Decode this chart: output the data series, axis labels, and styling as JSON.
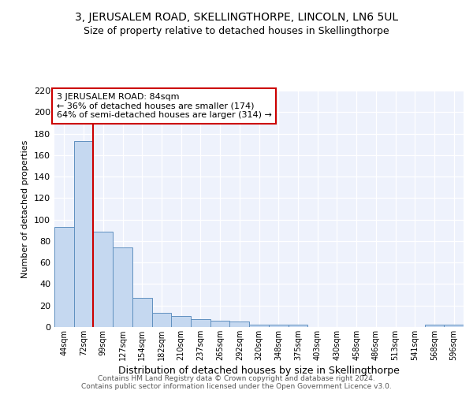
{
  "title": "3, JERUSALEM ROAD, SKELLINGTHORPE, LINCOLN, LN6 5UL",
  "subtitle": "Size of property relative to detached houses in Skellingthorpe",
  "xlabel": "Distribution of detached houses by size in Skellingthorpe",
  "ylabel": "Number of detached properties",
  "categories": [
    "44sqm",
    "72sqm",
    "99sqm",
    "127sqm",
    "154sqm",
    "182sqm",
    "210sqm",
    "237sqm",
    "265sqm",
    "292sqm",
    "320sqm",
    "348sqm",
    "375sqm",
    "403sqm",
    "430sqm",
    "458sqm",
    "486sqm",
    "513sqm",
    "541sqm",
    "568sqm",
    "596sqm"
  ],
  "values": [
    93,
    173,
    89,
    74,
    27,
    13,
    10,
    7,
    6,
    5,
    2,
    2,
    2,
    0,
    0,
    0,
    0,
    0,
    0,
    2,
    2
  ],
  "bar_color": "#c5d8f0",
  "bar_edge_color": "#6090c0",
  "vline_color": "#cc0000",
  "vline_x_index": 1.5,
  "annotation_text": "3 JERUSALEM ROAD: 84sqm\n← 36% of detached houses are smaller (174)\n64% of semi-detached houses are larger (314) →",
  "annotation_box_color": "#ffffff",
  "annotation_box_edge_color": "#cc0000",
  "footer_line1": "Contains HM Land Registry data © Crown copyright and database right 2024.",
  "footer_line2": "Contains public sector information licensed under the Open Government Licence v3.0.",
  "ylim": [
    0,
    220
  ],
  "yticks": [
    0,
    20,
    40,
    60,
    80,
    100,
    120,
    140,
    160,
    180,
    200,
    220
  ],
  "bg_color": "#eef2fc",
  "title_fontsize": 10,
  "subtitle_fontsize": 9,
  "ylabel_fontsize": 8,
  "xlabel_fontsize": 9
}
